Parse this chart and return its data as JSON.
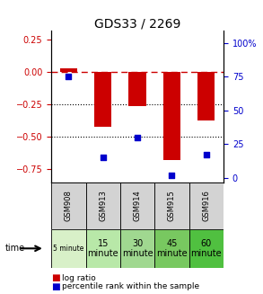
{
  "title": "GDS33 / 2269",
  "samples": [
    "GSM908",
    "GSM913",
    "GSM914",
    "GSM915",
    "GSM916"
  ],
  "time_labels_row1": [
    "5 minute",
    "15",
    "30",
    "45",
    "60"
  ],
  "time_labels_row2": [
    "",
    "minute",
    "minute",
    "minute",
    "minute"
  ],
  "time_colors": [
    "#d8f0c8",
    "#b8e8a8",
    "#a0d890",
    "#78c860",
    "#50c040"
  ],
  "log_ratios": [
    0.03,
    -0.42,
    -0.26,
    -0.68,
    -0.37
  ],
  "percentile_ranks": [
    75,
    15,
    30,
    2,
    17
  ],
  "bar_color": "#cc0000",
  "dot_color": "#0000cc",
  "ylim_left": [
    -0.85,
    0.32
  ],
  "ylim_right": [
    -3.5,
    109
  ],
  "yticks_left": [
    0.25,
    0,
    -0.25,
    -0.5,
    -0.75
  ],
  "yticks_right": [
    100,
    75,
    50,
    25,
    0
  ],
  "dotted_lines": [
    -0.25,
    -0.5
  ],
  "bar_width": 0.5,
  "gsm_bg": "#d3d3d3"
}
